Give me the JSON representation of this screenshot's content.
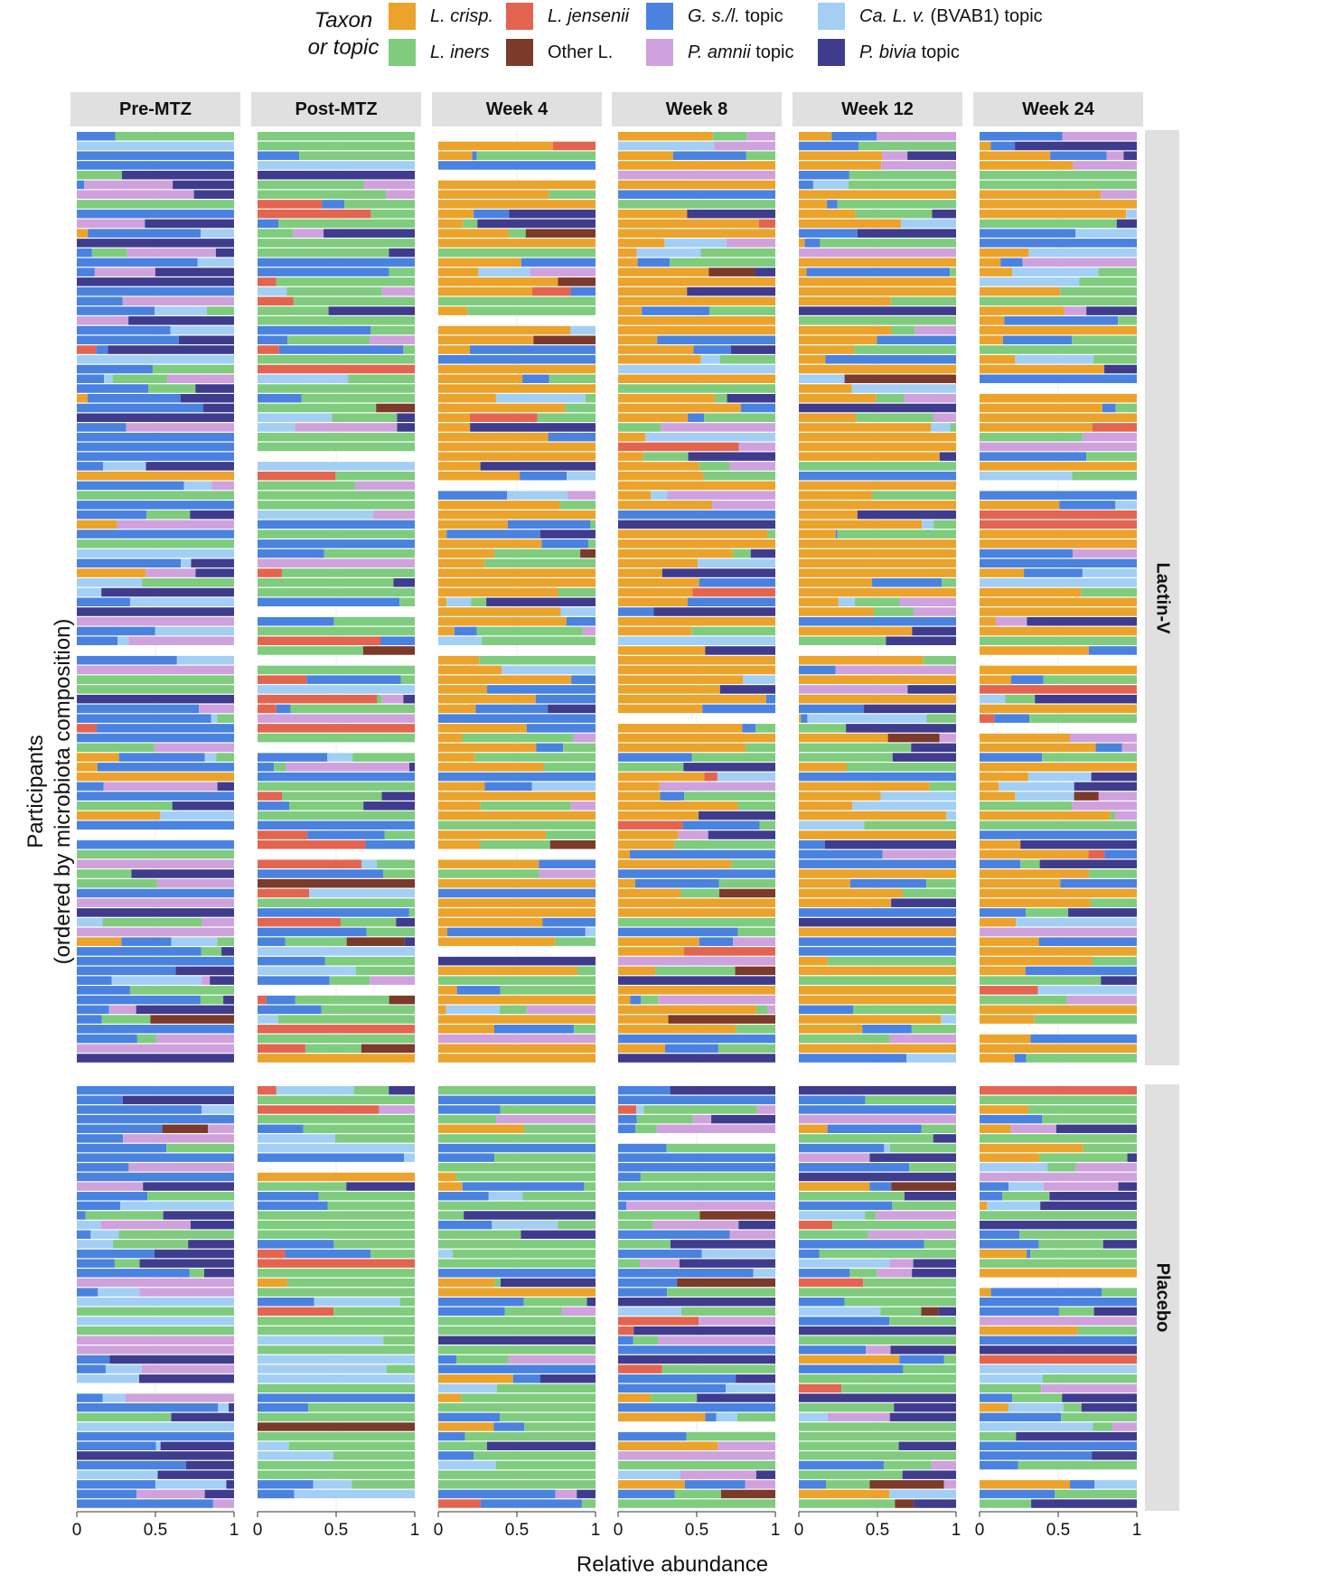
{
  "legend": {
    "title_line1": "Taxon",
    "title_line2": "or topic",
    "items": [
      {
        "key": "lcrisp",
        "label_it": "L. crisp.",
        "label_rest": "",
        "color": "#EBA32B"
      },
      {
        "key": "ljens",
        "label_it": "L. jensenii",
        "label_rest": "",
        "color": "#E3654F"
      },
      {
        "key": "gs",
        "label_it": "G. s./l.",
        "label_rest": " topic",
        "color": "#4A82E0"
      },
      {
        "key": "calv",
        "label_it": "Ca. L. v.",
        "label_rest": " (BVAB1) topic",
        "color": "#A3CFF5"
      },
      {
        "key": "liners",
        "label_it": "L. iners",
        "label_rest": "",
        "color": "#7FCC7E"
      },
      {
        "key": "otherL",
        "label_it": "",
        "label_rest": "Other L.",
        "color": "#7B3A2A"
      },
      {
        "key": "pamnii",
        "label_it": "P. amnii",
        "label_rest": " topic",
        "color": "#CFA2DD"
      },
      {
        "key": "pbivia",
        "label_it": "P. bivia",
        "label_rest": " topic",
        "color": "#3F3C8E"
      }
    ]
  },
  "axes": {
    "ylabel_line1": "Participants",
    "ylabel_line2": "(ordered by microbiota composition)",
    "xlabel": "Relative abundance",
    "ticks": [
      "0",
      "0.5",
      "1"
    ]
  },
  "chart_data": {
    "type": "bar",
    "orientation": "horizontal-stacked",
    "title": "",
    "xlabel": "Relative abundance",
    "ylabel": "Participants (ordered by microbiota composition)",
    "xlim": [
      0,
      1
    ],
    "columns": [
      "Pre-MTZ",
      "Post-MTZ",
      "Week 4",
      "Week 8",
      "Week 12",
      "Week 24"
    ],
    "rows": [
      "Lactin-V",
      "Placebo"
    ],
    "participants_per_group": {
      "Lactin-V": 96,
      "Placebo": 44
    },
    "series": [
      "L. crisp.",
      "L. jensenii",
      "G. s./l. topic",
      "Ca. L. v. (BVAB1) topic",
      "L. iners",
      "Other L.",
      "P. amnii topic",
      "P. bivia topic"
    ],
    "panels": [
      {
        "group": "Lactin-V",
        "visit": "Pre-MTZ",
        "mean_composition": {
          "L. crisp.": 0.02,
          "L. jensenii": 0.01,
          "G. s./l. topic": 0.35,
          "Ca. L. v. (BVAB1) topic": 0.12,
          "L. iners": 0.15,
          "Other L.": 0.01,
          "P. amnii topic": 0.17,
          "P. bivia topic": 0.17
        }
      },
      {
        "group": "Lactin-V",
        "visit": "Post-MTZ",
        "mean_composition": {
          "L. crisp.": 0.02,
          "L. jensenii": 0.1,
          "G. s./l. topic": 0.17,
          "Ca. L. v. (BVAB1) topic": 0.08,
          "L. iners": 0.52,
          "Other L.": 0.02,
          "P. amnii topic": 0.05,
          "P. bivia topic": 0.04
        }
      },
      {
        "group": "Lactin-V",
        "visit": "Week 4",
        "mean_composition": {
          "L. crisp.": 0.5,
          "L. jensenii": 0.01,
          "G. s./l. topic": 0.12,
          "Ca. L. v. (BVAB1) topic": 0.07,
          "L. iners": 0.22,
          "Other L.": 0.01,
          "P. amnii topic": 0.03,
          "P. bivia topic": 0.04
        }
      },
      {
        "group": "Lactin-V",
        "visit": "Week 8",
        "mean_composition": {
          "L. crisp.": 0.45,
          "L. jensenii": 0.02,
          "G. s./l. topic": 0.15,
          "Ca. L. v. (BVAB1) topic": 0.08,
          "L. iners": 0.18,
          "Other L.": 0.01,
          "P. amnii topic": 0.05,
          "P. bivia topic": 0.06
        }
      },
      {
        "group": "Lactin-V",
        "visit": "Week 12",
        "mean_composition": {
          "L. crisp.": 0.4,
          "L. jensenii": 0.02,
          "G. s./l. topic": 0.15,
          "Ca. L. v. (BVAB1) topic": 0.08,
          "L. iners": 0.2,
          "Other L.": 0.01,
          "P. amnii topic": 0.07,
          "P. bivia topic": 0.07
        }
      },
      {
        "group": "Lactin-V",
        "visit": "Week 24",
        "mean_composition": {
          "L. crisp.": 0.35,
          "L. jensenii": 0.02,
          "G. s./l. topic": 0.18,
          "Ca. L. v. (BVAB1) topic": 0.1,
          "L. iners": 0.18,
          "Other L.": 0.01,
          "P. amnii topic": 0.08,
          "P. bivia topic": 0.08
        }
      },
      {
        "group": "Placebo",
        "visit": "Pre-MTZ",
        "mean_composition": {
          "L. crisp.": 0.01,
          "L. jensenii": 0.01,
          "G. s./l. topic": 0.38,
          "Ca. L. v. (BVAB1) topic": 0.14,
          "L. iners": 0.13,
          "Other L.": 0.01,
          "P. amnii topic": 0.16,
          "P. bivia topic": 0.16
        }
      },
      {
        "group": "Placebo",
        "visit": "Post-MTZ",
        "mean_composition": {
          "L. crisp.": 0.03,
          "L. jensenii": 0.08,
          "G. s./l. topic": 0.18,
          "Ca. L. v. (BVAB1) topic": 0.07,
          "L. iners": 0.54,
          "Other L.": 0.02,
          "P. amnii topic": 0.05,
          "P. bivia topic": 0.03
        }
      },
      {
        "group": "Placebo",
        "visit": "Week 4",
        "mean_composition": {
          "L. crisp.": 0.05,
          "L. jensenii": 0.02,
          "G. s./l. topic": 0.22,
          "Ca. L. v. (BVAB1) topic": 0.08,
          "L. iners": 0.45,
          "Other L.": 0.01,
          "P. amnii topic": 0.09,
          "P. bivia topic": 0.08
        }
      },
      {
        "group": "Placebo",
        "visit": "Week 8",
        "mean_composition": {
          "L. crisp.": 0.05,
          "L. jensenii": 0.03,
          "G. s./l. topic": 0.24,
          "Ca. L. v. (BVAB1) topic": 0.07,
          "L. iners": 0.38,
          "Other L.": 0.02,
          "P. amnii topic": 0.11,
          "P. bivia topic": 0.1
        }
      },
      {
        "group": "Placebo",
        "visit": "Week 12",
        "mean_composition": {
          "L. crisp.": 0.06,
          "L. jensenii": 0.03,
          "G. s./l. topic": 0.25,
          "Ca. L. v. (BVAB1) topic": 0.07,
          "L. iners": 0.35,
          "Other L.": 0.02,
          "P. amnii topic": 0.11,
          "P. bivia topic": 0.11
        }
      },
      {
        "group": "Placebo",
        "visit": "Week 24",
        "mean_composition": {
          "L. crisp.": 0.06,
          "L. jensenii": 0.02,
          "G. s./l. topic": 0.26,
          "Ca. L. v. (BVAB1) topic": 0.08,
          "L. iners": 0.33,
          "Other L.": 0.01,
          "P. amnii topic": 0.12,
          "P. bivia topic": 0.12
        }
      }
    ]
  }
}
